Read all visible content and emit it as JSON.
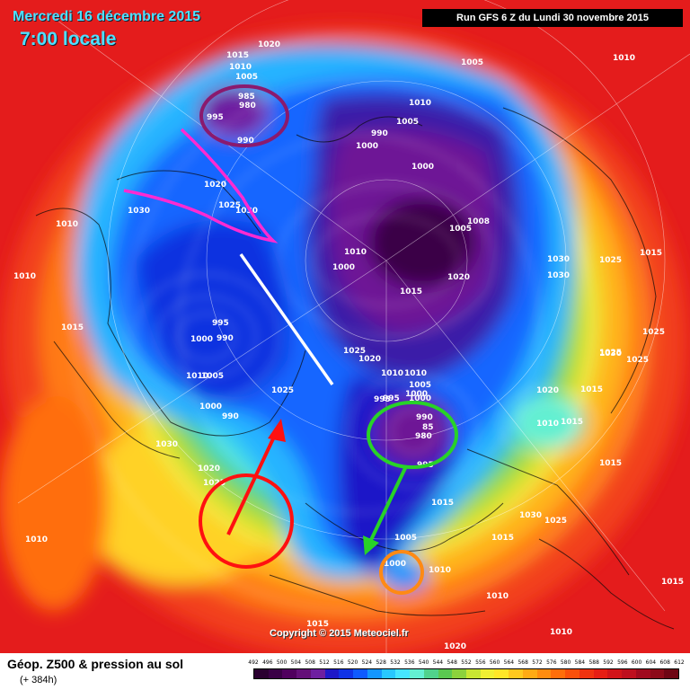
{
  "header": {
    "date": "Mercredi 16 décembre 2015",
    "time": "7:00 locale",
    "run": "Run GFS 6 Z du Lundi 30 novembre 2015"
  },
  "copyright": "Copyright © 2015 Meteociel.fr",
  "footer": {
    "title": "Géop. Z500 & pression au sol",
    "subtitle": "(+ 384h)"
  },
  "scale": {
    "labels": [
      "492",
      "496",
      "500",
      "504",
      "508",
      "512",
      "516",
      "520",
      "524",
      "528",
      "532",
      "536",
      "540",
      "544",
      "548",
      "552",
      "556",
      "560",
      "564",
      "568",
      "572",
      "576",
      "580",
      "584",
      "588",
      "592",
      "596",
      "600",
      "604",
      "608",
      "612"
    ],
    "colors": [
      "#2a0030",
      "#3a0046",
      "#50005e",
      "#640f78",
      "#6e1fa0",
      "#1e18c8",
      "#1032e6",
      "#0f5aff",
      "#1496ff",
      "#28c8ff",
      "#46e6ff",
      "#64f0d2",
      "#50d28c",
      "#5ac850",
      "#8cd23c",
      "#c8e632",
      "#f0f032",
      "#ffe628",
      "#ffc81e",
      "#ffaa14",
      "#ff8c0f",
      "#ff6e0a",
      "#fa500a",
      "#f0320f",
      "#e61e14",
      "#d21419",
      "#be0f1e",
      "#a00a1e",
      "#8c0a19",
      "#6e0514"
    ]
  },
  "pressure_labels": [
    {
      "text": "1015"
    },
    {
      "text": "1010"
    },
    {
      "text": "1005"
    },
    {
      "text": "985"
    },
    {
      "text": "980"
    },
    {
      "text": "995"
    },
    {
      "text": "990"
    },
    {
      "text": "1020"
    },
    {
      "text": "1020"
    },
    {
      "text": "1030"
    },
    {
      "text": "1030"
    },
    {
      "text": "1025"
    },
    {
      "text": "1010"
    },
    {
      "text": "1005"
    },
    {
      "text": "1010"
    },
    {
      "text": "1005"
    },
    {
      "text": "1010"
    },
    {
      "text": "990"
    },
    {
      "text": "1000"
    },
    {
      "text": "1000"
    },
    {
      "text": "1005"
    },
    {
      "text": "1008"
    },
    {
      "text": "1010"
    },
    {
      "text": "1000"
    },
    {
      "text": "1015"
    },
    {
      "text": "1020"
    },
    {
      "text": "1030"
    },
    {
      "text": "1030"
    },
    {
      "text": "1025"
    },
    {
      "text": "1015"
    },
    {
      "text": "1010"
    },
    {
      "text": "1015"
    },
    {
      "text": "1000"
    },
    {
      "text": "995"
    },
    {
      "text": "990"
    },
    {
      "text": "1010"
    },
    {
      "text": "1005"
    },
    {
      "text": "1000"
    },
    {
      "text": "990"
    },
    {
      "text": "1025"
    },
    {
      "text": "1030"
    },
    {
      "text": "1020"
    },
    {
      "text": "1025"
    },
    {
      "text": "1010"
    },
    {
      "text": "1010"
    },
    {
      "text": "1000"
    },
    {
      "text": "995"
    },
    {
      "text": "1025"
    },
    {
      "text": "1020"
    },
    {
      "text": "1010"
    },
    {
      "text": "1005"
    },
    {
      "text": "1000"
    },
    {
      "text": "995"
    },
    {
      "text": "990"
    },
    {
      "text": "85"
    },
    {
      "text": "980"
    },
    {
      "text": "995"
    },
    {
      "text": "1015"
    },
    {
      "text": "1005"
    },
    {
      "text": "1000"
    },
    {
      "text": "1010"
    },
    {
      "text": "1030"
    },
    {
      "text": "1025"
    },
    {
      "text": "1015"
    },
    {
      "text": "1025"
    },
    {
      "text": "1015"
    },
    {
      "text": "1020"
    },
    {
      "text": "1015"
    },
    {
      "text": "1010"
    },
    {
      "text": "1030"
    },
    {
      "text": "1025"
    },
    {
      "text": "1025"
    },
    {
      "text": "1015"
    },
    {
      "text": "1020"
    },
    {
      "text": "1015"
    },
    {
      "text": "1010"
    },
    {
      "text": "1015"
    },
    {
      "text": "1010"
    }
  ],
  "annotations": {
    "colors": {
      "low_alaska": "#8a1a6e",
      "magenta_trough": "#ff2ad2",
      "white_axis": "#ffffff",
      "red_anticyclone": "#ff1010",
      "green_low": "#28d228",
      "orange_low": "#ff8a14"
    }
  }
}
